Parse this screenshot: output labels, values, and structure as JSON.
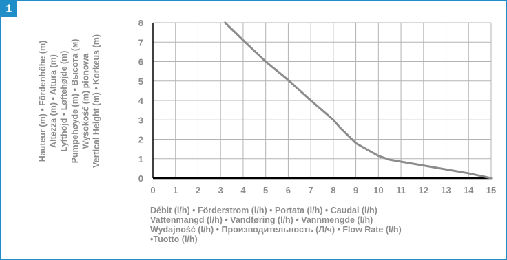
{
  "figure": {
    "badge": "1",
    "colors": {
      "frame": "#1f8dc8",
      "text": "#8c8c8c",
      "grid": "#b3b3b3",
      "line": "#8c8c8c",
      "axis": "#000000"
    }
  },
  "chart_data": {
    "type": "line",
    "title": "",
    "xlabel_lines": [
      "Débit (l/h) •  Förderstrom (l/h) • Portata (l/h) • Caudal (l/h)",
      "Vattenmängd (l/h) • Vandføring (l/h) •  Vannmengde (l/h)",
      "Wydajność (l/h) • Производительность (Л/ч) • Flow Rate (l/h)",
      "•Tuotto (l/h)"
    ],
    "ylabel_lines": [
      "Hauteur (m) •  Fördenhöhe (m)",
      "Altezza (m) • Altura (m)",
      "Lyfthöjd • Løftehøjde (m)",
      "Pumpehøyde (m) • Высота (м)",
      "Wysokość (m) pionowa",
      "Vertical Height (m) • Korkeus (m)"
    ],
    "xlim": [
      0,
      15
    ],
    "ylim": [
      0,
      8
    ],
    "xticks": [
      "0",
      "1",
      "2",
      "3",
      "4",
      "5",
      "6",
      "7",
      "8",
      "9",
      "10",
      "11",
      "12",
      "13",
      "14",
      "15"
    ],
    "yticks": [
      "0",
      "1",
      "2",
      "3",
      "4",
      "5",
      "6",
      "7",
      "8"
    ],
    "grid": true,
    "series": [
      {
        "x": [
          3.2,
          4,
          5,
          6,
          7,
          8,
          8.3,
          9,
          10,
          10.5,
          11,
          12,
          13,
          14,
          15
        ],
        "y": [
          8,
          7.1,
          6,
          5.05,
          4,
          3,
          2.6,
          1.8,
          1.15,
          0.95,
          0.85,
          0.65,
          0.45,
          0.25,
          0
        ]
      }
    ]
  }
}
